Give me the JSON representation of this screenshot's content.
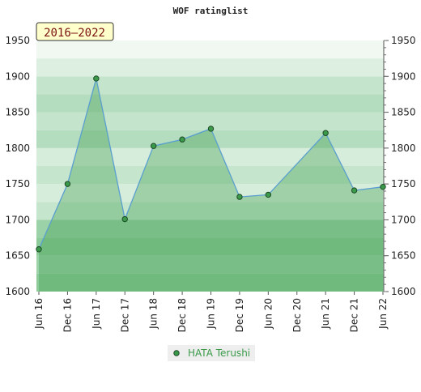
{
  "chart_data": {
    "type": "area",
    "title": "WOF ratinglist",
    "badge": "2016–2022",
    "categories": [
      "Jun 16",
      "Dec 16",
      "Jun 17",
      "Dec 17",
      "Jun 18",
      "Dec 18",
      "Jun 19",
      "Dec 19",
      "Jun 20",
      "Dec 20",
      "Jun 21",
      "Dec 21",
      "Jun 22"
    ],
    "series": [
      {
        "name": "HATA Terushi",
        "color": "#3a9a4a",
        "x": [
          "Jun 16",
          "Dec 16",
          "Jun 17",
          "Dec 17",
          "Jun 18",
          "Dec 18",
          "Jun 19",
          "Dec 19",
          "Jun 20",
          "Jun 21",
          "Dec 21",
          "Jun 22"
        ],
        "values": [
          1659,
          1750,
          1897,
          1701,
          1803,
          1812,
          1827,
          1732,
          1735,
          1821,
          1741,
          1746
        ]
      }
    ],
    "ylim": [
      1600,
      1950
    ],
    "yticks": [
      1600,
      1650,
      1700,
      1750,
      1800,
      1850,
      1900,
      1950
    ],
    "legend": "bottom"
  }
}
